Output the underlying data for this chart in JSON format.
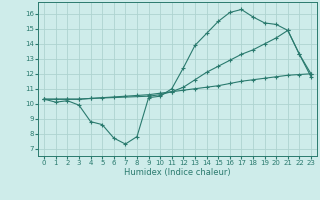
{
  "title": "",
  "xlabel": "Humidex (Indice chaleur)",
  "ylabel": "",
  "bg_color": "#ceecea",
  "line_color": "#2a7a6e",
  "grid_color": "#aed4d0",
  "x_ticks": [
    0,
    1,
    2,
    3,
    4,
    5,
    6,
    7,
    8,
    9,
    10,
    11,
    12,
    13,
    14,
    15,
    16,
    17,
    18,
    19,
    20,
    21,
    22,
    23
  ],
  "y_ticks": [
    7,
    8,
    9,
    10,
    11,
    12,
    13,
    14,
    15,
    16
  ],
  "ylim": [
    6.5,
    16.8
  ],
  "xlim": [
    -0.5,
    23.5
  ],
  "curve1_x": [
    0,
    1,
    2,
    3,
    4,
    5,
    6,
    7,
    8,
    9,
    10,
    11,
    12,
    13,
    14,
    15,
    16,
    17,
    18,
    19,
    20,
    21,
    22,
    23
  ],
  "curve1_y": [
    10.3,
    10.1,
    10.2,
    9.9,
    8.8,
    8.6,
    7.7,
    7.3,
    7.8,
    10.4,
    10.5,
    11.0,
    12.4,
    13.9,
    14.7,
    15.5,
    16.1,
    16.3,
    15.8,
    15.4,
    15.3,
    14.9,
    13.3,
    11.8
  ],
  "curve2_x": [
    0,
    2,
    3,
    4,
    9,
    10,
    11,
    12,
    13,
    14,
    15,
    16,
    17,
    18,
    19,
    20,
    21,
    22,
    23
  ],
  "curve2_y": [
    10.3,
    10.3,
    10.3,
    10.35,
    10.5,
    10.6,
    10.8,
    11.1,
    11.6,
    12.1,
    12.5,
    12.9,
    13.3,
    13.6,
    14.0,
    14.4,
    14.9,
    13.3,
    12.0
  ],
  "curve3_x": [
    0,
    1,
    2,
    3,
    4,
    5,
    6,
    7,
    8,
    9,
    10,
    11,
    12,
    13,
    14,
    15,
    16,
    17,
    18,
    19,
    20,
    21,
    22,
    23
  ],
  "curve3_y": [
    10.3,
    10.3,
    10.3,
    10.3,
    10.35,
    10.4,
    10.45,
    10.5,
    10.55,
    10.6,
    10.7,
    10.8,
    10.9,
    11.0,
    11.1,
    11.2,
    11.35,
    11.5,
    11.6,
    11.7,
    11.8,
    11.9,
    11.95,
    12.0
  ]
}
